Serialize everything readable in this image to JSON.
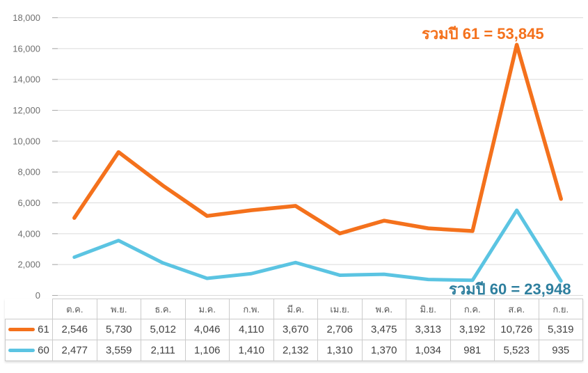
{
  "chart_data": {
    "type": "line",
    "stacked": true,
    "title": "",
    "xlabel": "",
    "ylabel": "",
    "categories": [
      "ต.ค.",
      "พ.ย.",
      "ธ.ค.",
      "ม.ค.",
      "ก.พ.",
      "มี.ค.",
      "เม.ย.",
      "พ.ค.",
      "มิ.ย.",
      "ก.ค.",
      "ส.ค.",
      "ก.ย."
    ],
    "series": [
      {
        "name": "61",
        "color": "#F4711C",
        "total": 53845,
        "values": [
          2546,
          5730,
          5012,
          4046,
          4110,
          3670,
          2706,
          3475,
          3313,
          3192,
          10726,
          5319
        ]
      },
      {
        "name": "60",
        "color": "#5BC4E2",
        "total": 23948,
        "values": [
          2477,
          3559,
          2111,
          1106,
          1410,
          2132,
          1310,
          1370,
          1034,
          981,
          5523,
          935
        ]
      }
    ],
    "ylim": [
      0,
      18000
    ],
    "ytick_step": 2000,
    "grid": "horizontal",
    "legend_position": "data-table-left",
    "note": "Stacked line chart: series 61 is drawn cumulatively on top of series 60; data table below mirrors raw values"
  },
  "annotations": {
    "total61": {
      "text": "รวมปี 61 = 53,845",
      "color": "#F4711C"
    },
    "total60": {
      "text": "รวมปี 60 = 23,948",
      "color": "#2E7F9E"
    }
  },
  "colors": {
    "background": "#FFFFFF",
    "gridline": "#DADADA",
    "axis_tick": "#A8A8A8",
    "axis_label": "#6F6F6F",
    "table_border": "#CBCBCB",
    "header_text": "#595959",
    "value_text": "#414141"
  }
}
